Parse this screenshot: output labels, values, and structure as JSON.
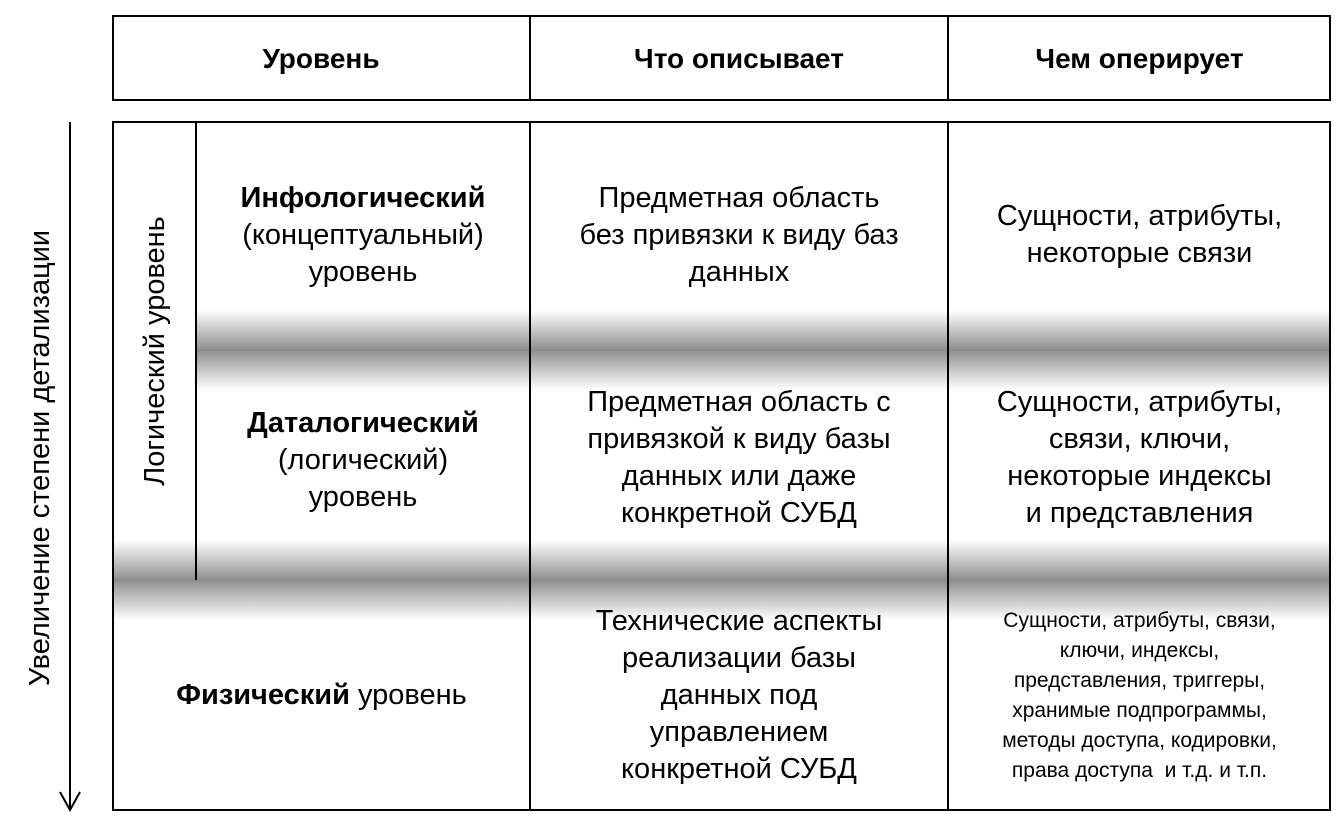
{
  "axis_label": "Увеличение степени детализации",
  "header": {
    "col1": "Уровень",
    "col2": "Что описывает",
    "col3": "Чем оперирует"
  },
  "group_label": "Логический уровень",
  "rows": [
    {
      "level_bold": "Инфологический",
      "level_rest": [
        "(концептуальный)",
        "уровень"
      ],
      "describes": [
        "Предметная область",
        "без привязки к виду баз",
        "данных"
      ],
      "operates": [
        "Сущности, атрибуты,",
        "некоторые связи"
      ]
    },
    {
      "level_bold": "Даталогический",
      "level_rest": [
        "(логический)",
        "уровень"
      ],
      "describes": [
        "Предметная область с",
        "привязкой к виду базы",
        "данных или даже",
        "конкретной СУБД"
      ],
      "operates": [
        "Сущности, атрибуты,",
        "связи, ключи,",
        "некоторые индексы",
        "и представления"
      ]
    },
    {
      "level_bold": "Физический",
      "level_rest_inline": " уровень",
      "describes": [
        "Технические аспекты",
        "реализации базы",
        "данных под",
        "управлением",
        "конкретной СУБД"
      ],
      "operates": [
        "Сущности, атрибуты, связи,",
        "ключи, индексы,",
        "представления, триггеры,",
        "хранимые подпрограммы,",
        "методы доступа, кодировки,",
        "права доступа  и т.д. и т.п."
      ]
    }
  ]
}
